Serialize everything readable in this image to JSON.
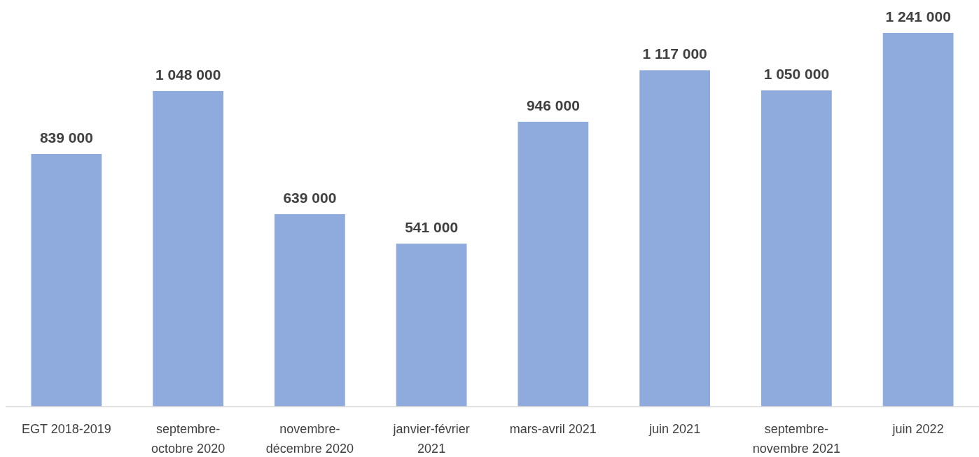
{
  "chart_data": {
    "type": "bar",
    "categories": [
      "EGT 2018-2019",
      "septembre-\noctobre 2020",
      "novembre-\ndécembre 2020",
      "janvier-février\n2021",
      "mars-avril 2021",
      "juin 2021",
      "septembre-\nnovembre 2021",
      "juin 2022"
    ],
    "values": [
      839000,
      1048000,
      639000,
      541000,
      946000,
      1117000,
      1050000,
      1241000
    ],
    "value_labels": [
      "839 000",
      "1 048 000",
      "639 000",
      "541 000",
      "946 000",
      "1 117 000",
      "1 050 000",
      "1 241 000"
    ],
    "color": "#8faadc"
  }
}
